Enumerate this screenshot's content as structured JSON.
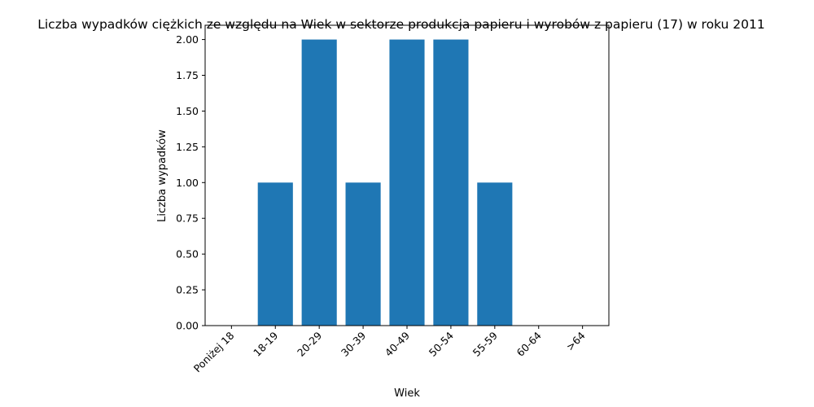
{
  "chart_data": {
    "type": "bar",
    "title": "Liczba wypadków ciężkich ze względu na Wiek w sektorze produkcja papieru i wyrobów z papieru  (17)   w roku 2011",
    "xlabel": "Wiek",
    "ylabel": "Liczba wypadków",
    "categories": [
      "Poniżej 18",
      "18-19",
      "20-29",
      "30-39",
      "40-49",
      "50-54",
      "55-59",
      "60-64",
      ">64"
    ],
    "values": [
      0,
      1,
      2,
      1,
      2,
      2,
      1,
      0,
      0
    ],
    "ylim": [
      0,
      2.1
    ],
    "yticks": [
      "0.00",
      "0.25",
      "0.50",
      "0.75",
      "1.00",
      "1.25",
      "1.50",
      "1.75",
      "2.00"
    ],
    "bar_color": "#1f77b4",
    "grid": false,
    "legend": "none"
  }
}
